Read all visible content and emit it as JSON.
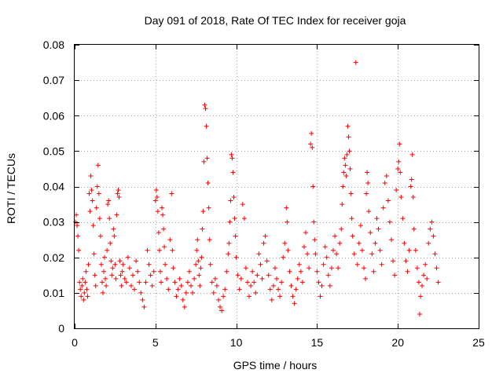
{
  "chart_data": {
    "type": "scatter",
    "title": "Day 091 of 2018, Rate Of TEC Index for receiver goja",
    "xlabel": "GPS time / hours",
    "ylabel": "ROTI / TECUs",
    "xlim": [
      0,
      25
    ],
    "ylim": [
      0,
      0.08
    ],
    "xticks": [
      0,
      5,
      10,
      15,
      20,
      25
    ],
    "xtick_labels": [
      "0",
      "5",
      "10",
      "15",
      "20",
      "25"
    ],
    "yticks": [
      0,
      0.01,
      0.02,
      0.03,
      0.04,
      0.05,
      0.06,
      0.07,
      0.08
    ],
    "ytick_labels": [
      "0",
      "0.01",
      "0.02",
      "0.03",
      "0.04",
      "0.05",
      "0.06",
      "0.07",
      "0.08"
    ],
    "grid": true,
    "marker": "+",
    "color": "#ff0000",
    "series": [
      {
        "name": "ROTI",
        "points": [
          [
            0.05,
            0.03
          ],
          [
            0.1,
            0.032
          ],
          [
            0.15,
            0.029
          ],
          [
            0.2,
            0.026
          ],
          [
            0.25,
            0.022
          ],
          [
            0.3,
            0.013
          ],
          [
            0.35,
            0.011
          ],
          [
            0.4,
            0.009
          ],
          [
            0.45,
            0.012
          ],
          [
            0.5,
            0.014
          ],
          [
            0.55,
            0.008
          ],
          [
            0.6,
            0.01
          ],
          [
            0.65,
            0.013
          ],
          [
            0.7,
            0.016
          ],
          [
            0.75,
            0.011
          ],
          [
            0.8,
            0.009
          ],
          [
            0.85,
            0.018
          ],
          [
            0.9,
            0.038
          ],
          [
            0.95,
            0.033
          ],
          [
            1.0,
            0.043
          ],
          [
            1.05,
            0.039
          ],
          [
            1.1,
            0.036
          ],
          [
            1.15,
            0.029
          ],
          [
            1.2,
            0.021
          ],
          [
            1.25,
            0.015
          ],
          [
            1.3,
            0.012
          ],
          [
            1.35,
            0.034
          ],
          [
            1.4,
            0.04
          ],
          [
            1.45,
            0.046
          ],
          [
            1.5,
            0.038
          ],
          [
            1.55,
            0.031
          ],
          [
            1.6,
            0.026
          ],
          [
            1.65,
            0.018
          ],
          [
            1.7,
            0.013
          ],
          [
            1.75,
            0.01
          ],
          [
            1.8,
            0.016
          ],
          [
            1.85,
            0.02
          ],
          [
            1.9,
            0.014
          ],
          [
            1.95,
            0.012
          ],
          [
            2.0,
            0.022
          ],
          [
            2.05,
            0.035
          ],
          [
            2.1,
            0.036
          ],
          [
            2.15,
            0.031
          ],
          [
            2.2,
            0.024
          ],
          [
            2.25,
            0.019
          ],
          [
            2.3,
            0.015
          ],
          [
            2.35,
            0.017
          ],
          [
            2.4,
            0.028
          ],
          [
            2.45,
            0.026
          ],
          [
            2.5,
            0.018
          ],
          [
            2.55,
            0.014
          ],
          [
            2.6,
            0.032
          ],
          [
            2.65,
            0.038
          ],
          [
            2.7,
            0.039
          ],
          [
            2.75,
            0.037
          ],
          [
            2.8,
            0.019
          ],
          [
            2.85,
            0.015
          ],
          [
            2.9,
            0.012
          ],
          [
            2.95,
            0.016
          ],
          [
            3.0,
            0.018
          ],
          [
            3.1,
            0.014
          ],
          [
            3.2,
            0.013
          ],
          [
            3.3,
            0.02
          ],
          [
            3.4,
            0.017
          ],
          [
            3.5,
            0.012
          ],
          [
            3.6,
            0.015
          ],
          [
            3.7,
            0.011
          ],
          [
            3.8,
            0.019
          ],
          [
            3.9,
            0.016
          ],
          [
            4.0,
            0.013
          ],
          [
            4.1,
            0.01
          ],
          [
            4.2,
            0.008
          ],
          [
            4.3,
            0.006
          ],
          [
            4.4,
            0.013
          ],
          [
            4.5,
            0.022
          ],
          [
            4.6,
            0.018
          ],
          [
            4.7,
            0.015
          ],
          [
            4.8,
            0.012
          ],
          [
            4.9,
            0.016
          ],
          [
            5.0,
            0.036
          ],
          [
            5.05,
            0.039
          ],
          [
            5.1,
            0.037
          ],
          [
            5.15,
            0.033
          ],
          [
            5.2,
            0.027
          ],
          [
            5.25,
            0.022
          ],
          [
            5.3,
            0.016
          ],
          [
            5.35,
            0.013
          ],
          [
            5.4,
            0.034
          ],
          [
            5.45,
            0.032
          ],
          [
            5.5,
            0.028
          ],
          [
            5.55,
            0.023
          ],
          [
            5.6,
            0.018
          ],
          [
            5.7,
            0.014
          ],
          [
            5.8,
            0.011
          ],
          [
            5.9,
            0.025
          ],
          [
            6.0,
            0.038
          ],
          [
            6.05,
            0.022
          ],
          [
            6.1,
            0.017
          ],
          [
            6.2,
            0.013
          ],
          [
            6.3,
            0.009
          ],
          [
            6.4,
            0.011
          ],
          [
            6.5,
            0.014
          ],
          [
            6.6,
            0.012
          ],
          [
            6.7,
            0.008
          ],
          [
            6.8,
            0.006
          ],
          [
            6.9,
            0.01
          ],
          [
            7.0,
            0.013
          ],
          [
            7.1,
            0.016
          ],
          [
            7.2,
            0.012
          ],
          [
            7.3,
            0.01
          ],
          [
            7.4,
            0.014
          ],
          [
            7.5,
            0.018
          ],
          [
            7.55,
            0.022
          ],
          [
            7.6,
            0.025
          ],
          [
            7.65,
            0.019
          ],
          [
            7.7,
            0.015
          ],
          [
            7.75,
            0.012
          ],
          [
            7.8,
            0.017
          ],
          [
            7.85,
            0.02
          ],
          [
            7.9,
            0.028
          ],
          [
            7.95,
            0.033
          ],
          [
            8.0,
            0.047
          ],
          [
            8.05,
            0.063
          ],
          [
            8.1,
            0.062
          ],
          [
            8.15,
            0.057
          ],
          [
            8.2,
            0.048
          ],
          [
            8.25,
            0.041
          ],
          [
            8.3,
            0.034
          ],
          [
            8.35,
            0.025
          ],
          [
            8.4,
            0.018
          ],
          [
            8.5,
            0.013
          ],
          [
            8.6,
            0.01
          ],
          [
            8.7,
            0.014
          ],
          [
            8.8,
            0.012
          ],
          [
            8.9,
            0.008
          ],
          [
            9.0,
            0.006
          ],
          [
            9.1,
            0.005
          ],
          [
            9.2,
            0.009
          ],
          [
            9.3,
            0.011
          ],
          [
            9.4,
            0.016
          ],
          [
            9.5,
            0.021
          ],
          [
            9.55,
            0.024
          ],
          [
            9.6,
            0.03
          ],
          [
            9.65,
            0.036
          ],
          [
            9.7,
            0.049
          ],
          [
            9.75,
            0.048
          ],
          [
            9.8,
            0.044
          ],
          [
            9.85,
            0.037
          ],
          [
            9.9,
            0.031
          ],
          [
            9.95,
            0.026
          ],
          [
            10.0,
            0.02
          ],
          [
            10.1,
            0.015
          ],
          [
            10.2,
            0.011
          ],
          [
            10.3,
            0.014
          ],
          [
            10.4,
            0.035
          ],
          [
            10.5,
            0.031
          ],
          [
            10.6,
            0.017
          ],
          [
            10.7,
            0.013
          ],
          [
            10.8,
            0.009
          ],
          [
            10.9,
            0.012
          ],
          [
            11.0,
            0.016
          ],
          [
            11.1,
            0.013
          ],
          [
            11.2,
            0.01
          ],
          [
            11.3,
            0.015
          ],
          [
            11.4,
            0.021
          ],
          [
            11.5,
            0.018
          ],
          [
            11.6,
            0.014
          ],
          [
            11.7,
            0.024
          ],
          [
            11.8,
            0.026
          ],
          [
            11.9,
            0.019
          ],
          [
            12.0,
            0.015
          ],
          [
            12.1,
            0.011
          ],
          [
            12.2,
            0.008
          ],
          [
            12.3,
            0.012
          ],
          [
            12.4,
            0.017
          ],
          [
            12.5,
            0.014
          ],
          [
            12.6,
            0.011
          ],
          [
            12.7,
            0.009
          ],
          [
            12.8,
            0.013
          ],
          [
            12.9,
            0.02
          ],
          [
            13.0,
            0.024
          ],
          [
            13.1,
            0.034
          ],
          [
            13.15,
            0.03
          ],
          [
            13.2,
            0.022
          ],
          [
            13.3,
            0.016
          ],
          [
            13.4,
            0.012
          ],
          [
            13.5,
            0.009
          ],
          [
            13.6,
            0.007
          ],
          [
            13.7,
            0.011
          ],
          [
            13.8,
            0.014
          ],
          [
            13.9,
            0.018
          ],
          [
            14.0,
            0.016
          ],
          [
            14.1,
            0.013
          ],
          [
            14.2,
            0.023
          ],
          [
            14.3,
            0.027
          ],
          [
            14.4,
            0.021
          ],
          [
            14.5,
            0.017
          ],
          [
            14.6,
            0.052
          ],
          [
            14.65,
            0.055
          ],
          [
            14.7,
            0.051
          ],
          [
            14.75,
            0.04
          ],
          [
            14.8,
            0.03
          ],
          [
            14.85,
            0.025
          ],
          [
            14.9,
            0.021
          ],
          [
            15.0,
            0.016
          ],
          [
            15.1,
            0.013
          ],
          [
            15.2,
            0.009
          ],
          [
            15.3,
            0.012
          ],
          [
            15.4,
            0.018
          ],
          [
            15.5,
            0.023
          ],
          [
            15.6,
            0.02
          ],
          [
            15.7,
            0.015
          ],
          [
            15.8,
            0.012
          ],
          [
            15.9,
            0.017
          ],
          [
            16.0,
            0.022
          ],
          [
            16.1,
            0.026
          ],
          [
            16.2,
            0.021
          ],
          [
            16.3,
            0.017
          ],
          [
            16.4,
            0.024
          ],
          [
            16.5,
            0.028
          ],
          [
            16.55,
            0.035
          ],
          [
            16.6,
            0.04
          ],
          [
            16.65,
            0.044
          ],
          [
            16.7,
            0.048
          ],
          [
            16.75,
            0.046
          ],
          [
            16.8,
            0.043
          ],
          [
            16.85,
            0.049
          ],
          [
            16.9,
            0.057
          ],
          [
            16.95,
            0.054
          ],
          [
            17.0,
            0.05
          ],
          [
            17.05,
            0.045
          ],
          [
            17.1,
            0.038
          ],
          [
            17.15,
            0.031
          ],
          [
            17.2,
            0.026
          ],
          [
            17.3,
            0.021
          ],
          [
            17.4,
            0.075
          ],
          [
            17.5,
            0.018
          ],
          [
            17.6,
            0.024
          ],
          [
            17.7,
            0.029
          ],
          [
            17.8,
            0.022
          ],
          [
            17.9,
            0.017
          ],
          [
            18.0,
            0.014
          ],
          [
            18.05,
            0.038
          ],
          [
            18.1,
            0.044
          ],
          [
            18.15,
            0.041
          ],
          [
            18.2,
            0.033
          ],
          [
            18.3,
            0.027
          ],
          [
            18.4,
            0.021
          ],
          [
            18.5,
            0.016
          ],
          [
            18.6,
            0.024
          ],
          [
            18.7,
            0.031
          ],
          [
            18.8,
            0.028
          ],
          [
            18.9,
            0.022
          ],
          [
            19.0,
            0.018
          ],
          [
            19.1,
            0.034
          ],
          [
            19.2,
            0.041
          ],
          [
            19.3,
            0.043
          ],
          [
            19.4,
            0.036
          ],
          [
            19.5,
            0.03
          ],
          [
            19.6,
            0.025
          ],
          [
            19.7,
            0.019
          ],
          [
            19.8,
            0.015
          ],
          [
            19.9,
            0.039
          ],
          [
            20.0,
            0.045
          ],
          [
            20.05,
            0.047
          ],
          [
            20.1,
            0.052
          ],
          [
            20.15,
            0.044
          ],
          [
            20.2,
            0.037
          ],
          [
            20.3,
            0.031
          ],
          [
            20.4,
            0.024
          ],
          [
            20.5,
            0.019
          ],
          [
            20.6,
            0.016
          ],
          [
            20.7,
            0.022
          ],
          [
            20.8,
            0.04
          ],
          [
            20.85,
            0.042
          ],
          [
            20.9,
            0.049
          ],
          [
            20.95,
            0.037
          ],
          [
            21.0,
            0.028
          ],
          [
            21.1,
            0.022
          ],
          [
            21.2,
            0.017
          ],
          [
            21.3,
            0.013
          ],
          [
            21.35,
            0.004
          ],
          [
            21.4,
            0.009
          ],
          [
            21.5,
            0.012
          ],
          [
            21.6,
            0.015
          ],
          [
            21.7,
            0.018
          ],
          [
            21.8,
            0.014
          ],
          [
            21.9,
            0.024
          ],
          [
            22.0,
            0.028
          ],
          [
            22.1,
            0.03
          ],
          [
            22.2,
            0.026
          ],
          [
            22.3,
            0.021
          ],
          [
            22.4,
            0.017
          ],
          [
            22.5,
            0.013
          ]
        ]
      }
    ]
  }
}
